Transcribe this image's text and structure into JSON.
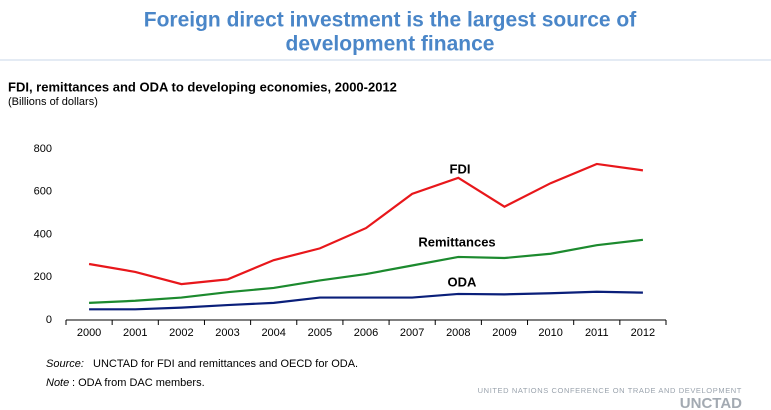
{
  "header": {
    "title_line1": "Foreign direct investment is the largest source of",
    "title_line2": "development finance"
  },
  "chart_data": {
    "type": "line",
    "title": "FDI, remittances and ODA to developing economies, 2000-2012",
    "subtitle": "(Billions of dollars)",
    "categories": [
      "2000",
      "2001",
      "2002",
      "2003",
      "2004",
      "2005",
      "2006",
      "2007",
      "2008",
      "2009",
      "2010",
      "2011",
      "2012"
    ],
    "series": [
      {
        "name": "FDI",
        "color": "#e8171b",
        "values": [
          262,
          225,
          168,
          190,
          280,
          335,
          430,
          590,
          665,
          530,
          640,
          730,
          700
        ]
      },
      {
        "name": "Remittances",
        "color": "#1c8a2e",
        "values": [
          80,
          90,
          105,
          130,
          150,
          185,
          215,
          255,
          295,
          290,
          310,
          350,
          375
        ]
      },
      {
        "name": "ODA",
        "color": "#0a1f7a",
        "values": [
          50,
          50,
          58,
          70,
          80,
          105,
          105,
          105,
          122,
          120,
          125,
          132,
          128
        ]
      }
    ],
    "ylim": [
      0,
      800
    ],
    "yticks": [
      0,
      200,
      400,
      600,
      800
    ],
    "grid": false
  },
  "footer": {
    "source_label": "Source:",
    "source_text": "UNCTAD for FDI and remittances and OECD for ODA.",
    "note_label": "Note",
    "note_text": ": ODA from DAC members.",
    "org": "UNITED NATIONS CONFERENCE ON TRADE AND DEVELOPMENT",
    "logo": "UNCTAD"
  }
}
